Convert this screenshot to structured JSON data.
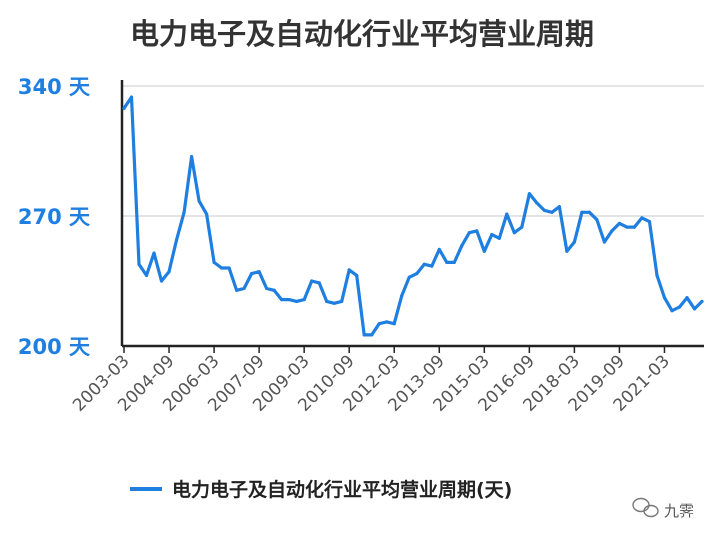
{
  "chart_data": {
    "type": "line",
    "title": "电力电子及自动化行业平均营业周期",
    "xlabel": "",
    "ylabel": "",
    "ylim": [
      200,
      340
    ],
    "y_ticks": [
      {
        "value": 200,
        "label": "200 天"
      },
      {
        "value": 270,
        "label": "270 天"
      },
      {
        "value": 340,
        "label": "340 天"
      }
    ],
    "x_tick_labels": [
      "2003-03",
      "2004-09",
      "2006-03",
      "2007-09",
      "2009-03",
      "2010-09",
      "2012-03",
      "2013-09",
      "2015-03",
      "2016-09",
      "2018-03",
      "2019-09",
      "2021-03"
    ],
    "grid": true,
    "legend_position": "bottom",
    "series": [
      {
        "name": "电力电子及自动化行业平均营业周期(天)",
        "color": "#1f7fe0",
        "values": [
          328,
          334,
          244,
          238,
          250,
          235,
          240,
          257,
          272,
          302,
          278,
          271,
          245,
          242,
          242,
          230,
          231,
          239,
          240,
          231,
          230,
          225,
          225,
          224,
          225,
          235,
          234,
          224,
          223,
          224,
          241,
          238,
          206,
          206,
          212,
          213,
          212,
          227,
          237,
          239,
          244,
          243,
          252,
          245,
          245,
          254,
          261,
          262,
          251,
          260,
          258,
          271,
          261,
          264,
          282,
          277,
          273,
          272,
          275,
          251,
          256,
          272,
          272,
          268,
          256,
          262,
          266,
          264,
          264,
          269,
          267,
          238,
          226,
          219,
          221,
          226,
          220,
          224
        ]
      }
    ]
  },
  "watermark": {
    "text": "九霁",
    "icon": "wechat-bubble-icon"
  }
}
